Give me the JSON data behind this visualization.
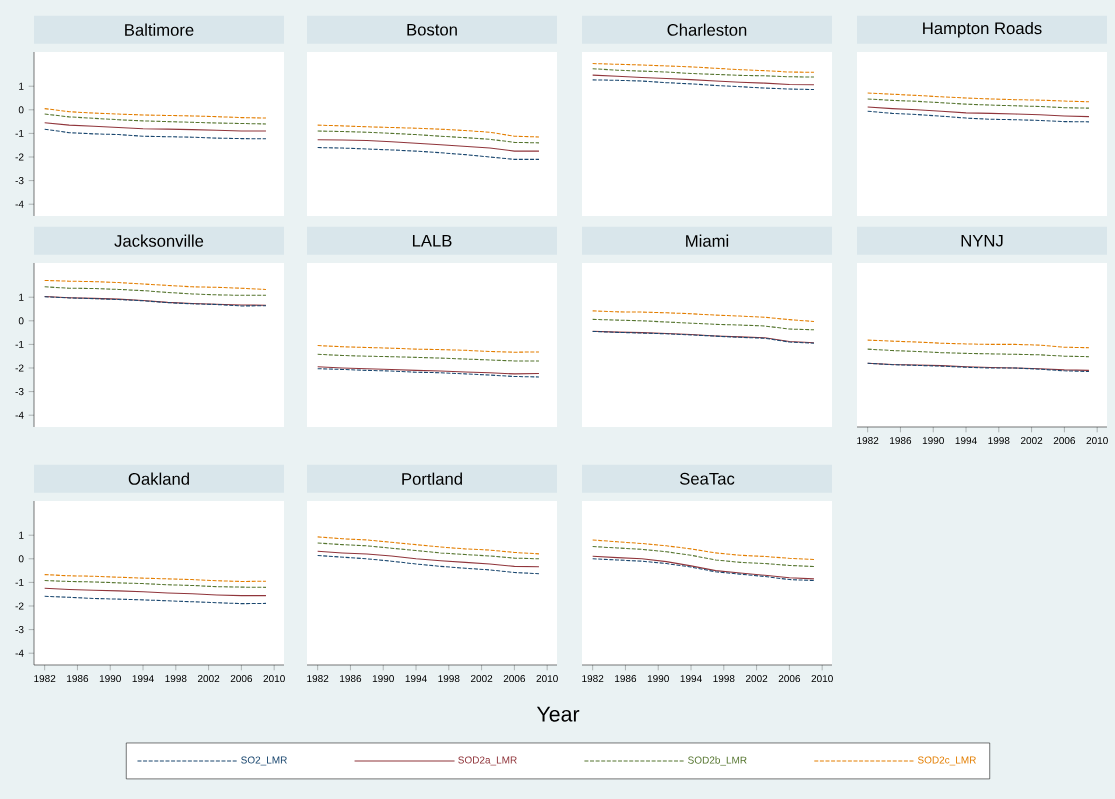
{
  "chart_data": [
    {
      "type": "line",
      "title": "Baltimore",
      "x": [
        1982,
        1985,
        1988,
        1991,
        1994,
        1997,
        2000,
        2003,
        2006,
        2009
      ],
      "xlim": [
        1980.7,
        2011.2
      ],
      "ylim": [
        -4.5,
        2.45
      ],
      "xticks": [
        1982,
        1986,
        1990,
        1994,
        1998,
        2002,
        2006,
        2010
      ],
      "yticks": [
        -4,
        -3,
        -2,
        -1,
        0,
        1
      ],
      "tick_labels": "y",
      "series": [
        {
          "color": "#1a476f",
          "line_style": "dashed",
          "values": [
            -0.82,
            -0.97,
            -1.02,
            -1.05,
            -1.12,
            -1.14,
            -1.16,
            -1.2,
            -1.22,
            -1.23
          ]
        },
        {
          "color": "#90353b",
          "line_style": "solid",
          "values": [
            -0.55,
            -0.65,
            -0.7,
            -0.75,
            -0.8,
            -0.82,
            -0.84,
            -0.87,
            -0.9,
            -0.9
          ]
        },
        {
          "color": "#55752f",
          "line_style": "dashed",
          "values": [
            -0.18,
            -0.3,
            -0.36,
            -0.42,
            -0.47,
            -0.5,
            -0.53,
            -0.56,
            -0.58,
            -0.6
          ]
        },
        {
          "color": "#e37e00",
          "line_style": "dashed",
          "values": [
            0.05,
            -0.08,
            -0.14,
            -0.18,
            -0.22,
            -0.24,
            -0.26,
            -0.29,
            -0.33,
            -0.35
          ]
        }
      ]
    },
    {
      "type": "line",
      "title": "Boston",
      "x": [
        1982,
        1985,
        1988,
        1991,
        1994,
        1997,
        2000,
        2003,
        2006,
        2009
      ],
      "xlim": [
        1980.7,
        2011.2
      ],
      "ylim": [
        -4.5,
        2.45
      ],
      "xticks": [
        1982,
        1986,
        1990,
        1994,
        1998,
        2002,
        2006,
        2010
      ],
      "yticks": [
        -4,
        -3,
        -2,
        -1,
        0,
        1
      ],
      "tick_labels": false,
      "series": [
        {
          "color": "#1a476f",
          "line_style": "dashed",
          "values": [
            -1.6,
            -1.62,
            -1.66,
            -1.7,
            -1.75,
            -1.82,
            -1.9,
            -2.0,
            -2.1,
            -2.1
          ]
        },
        {
          "color": "#90353b",
          "line_style": "solid",
          "values": [
            -1.27,
            -1.28,
            -1.3,
            -1.35,
            -1.42,
            -1.48,
            -1.55,
            -1.62,
            -1.75,
            -1.75
          ]
        },
        {
          "color": "#55752f",
          "line_style": "dashed",
          "values": [
            -0.9,
            -0.92,
            -0.95,
            -1.0,
            -1.05,
            -1.12,
            -1.18,
            -1.25,
            -1.38,
            -1.4
          ]
        },
        {
          "color": "#e37e00",
          "line_style": "dashed",
          "values": [
            -0.65,
            -0.68,
            -0.72,
            -0.75,
            -0.78,
            -0.82,
            -0.88,
            -0.95,
            -1.12,
            -1.15
          ]
        }
      ]
    },
    {
      "type": "line",
      "title": "Charleston",
      "x": [
        1982,
        1985,
        1988,
        1991,
        1994,
        1997,
        2000,
        2003,
        2006,
        2009
      ],
      "xlim": [
        1980.7,
        2011.2
      ],
      "ylim": [
        -4.5,
        2.45
      ],
      "xticks": [
        1982,
        1986,
        1990,
        1994,
        1998,
        2002,
        2006,
        2010
      ],
      "yticks": [
        -4,
        -3,
        -2,
        -1,
        0,
        1
      ],
      "tick_labels": false,
      "series": [
        {
          "color": "#1a476f",
          "line_style": "dashed",
          "values": [
            1.27,
            1.25,
            1.22,
            1.15,
            1.1,
            1.03,
            0.98,
            0.92,
            0.88,
            0.86
          ]
        },
        {
          "color": "#90353b",
          "line_style": "solid",
          "values": [
            1.47,
            1.42,
            1.37,
            1.33,
            1.28,
            1.22,
            1.17,
            1.13,
            1.07,
            1.06
          ]
        },
        {
          "color": "#55752f",
          "line_style": "dashed",
          "values": [
            1.74,
            1.68,
            1.64,
            1.6,
            1.54,
            1.5,
            1.46,
            1.44,
            1.4,
            1.39
          ]
        },
        {
          "color": "#e37e00",
          "line_style": "dashed",
          "values": [
            1.96,
            1.93,
            1.9,
            1.86,
            1.82,
            1.76,
            1.7,
            1.66,
            1.6,
            1.59
          ]
        }
      ]
    },
    {
      "type": "line",
      "title": "Hampton Roads",
      "x": [
        1982,
        1985,
        1988,
        1991,
        1994,
        1997,
        2000,
        2003,
        2006,
        2009
      ],
      "xlim": [
        1980.7,
        2011.2
      ],
      "ylim": [
        -4.5,
        2.45
      ],
      "xticks": [
        1982,
        1986,
        1990,
        1994,
        1998,
        2002,
        2006,
        2010
      ],
      "yticks": [
        -4,
        -3,
        -2,
        -1,
        0,
        1
      ],
      "tick_labels": false,
      "series": [
        {
          "color": "#1a476f",
          "line_style": "dashed",
          "values": [
            -0.06,
            -0.15,
            -0.2,
            -0.27,
            -0.35,
            -0.4,
            -0.42,
            -0.45,
            -0.5,
            -0.51
          ]
        },
        {
          "color": "#90353b",
          "line_style": "solid",
          "values": [
            0.12,
            0.05,
            0.0,
            -0.06,
            -0.13,
            -0.15,
            -0.18,
            -0.21,
            -0.26,
            -0.29
          ]
        },
        {
          "color": "#55752f",
          "line_style": "dashed",
          "values": [
            0.46,
            0.4,
            0.36,
            0.3,
            0.24,
            0.2,
            0.17,
            0.14,
            0.09,
            0.07
          ]
        },
        {
          "color": "#e37e00",
          "line_style": "dashed",
          "values": [
            0.71,
            0.66,
            0.61,
            0.55,
            0.5,
            0.46,
            0.43,
            0.41,
            0.37,
            0.34
          ]
        }
      ]
    },
    {
      "type": "line",
      "title": "Jacksonville",
      "x": [
        1982,
        1985,
        1988,
        1991,
        1994,
        1997,
        2000,
        2003,
        2006,
        2009
      ],
      "xlim": [
        1980.7,
        2011.2
      ],
      "ylim": [
        -4.5,
        2.45
      ],
      "xticks": [
        1982,
        1986,
        1990,
        1994,
        1998,
        2002,
        2006,
        2010
      ],
      "yticks": [
        -4,
        -3,
        -2,
        -1,
        0,
        1
      ],
      "tick_labels": "y",
      "series": [
        {
          "color": "#1a476f",
          "line_style": "dashed",
          "values": [
            1.02,
            0.97,
            0.94,
            0.9,
            0.85,
            0.77,
            0.72,
            0.69,
            0.63,
            0.64
          ]
        },
        {
          "color": "#90353b",
          "line_style": "solid",
          "values": [
            1.03,
            0.98,
            0.95,
            0.92,
            0.86,
            0.78,
            0.73,
            0.7,
            0.67,
            0.66
          ]
        },
        {
          "color": "#55752f",
          "line_style": "dashed",
          "values": [
            1.44,
            1.38,
            1.37,
            1.33,
            1.28,
            1.2,
            1.14,
            1.1,
            1.08,
            1.08
          ]
        },
        {
          "color": "#e37e00",
          "line_style": "dashed",
          "values": [
            1.71,
            1.68,
            1.66,
            1.62,
            1.56,
            1.5,
            1.44,
            1.42,
            1.38,
            1.33
          ]
        }
      ]
    },
    {
      "type": "line",
      "title": "LALB",
      "x": [
        1982,
        1985,
        1988,
        1991,
        1994,
        1997,
        2000,
        2003,
        2006,
        2009
      ],
      "xlim": [
        1980.7,
        2011.2
      ],
      "ylim": [
        -4.5,
        2.45
      ],
      "xticks": [
        1982,
        1986,
        1990,
        1994,
        1998,
        2002,
        2006,
        2010
      ],
      "yticks": [
        -4,
        -3,
        -2,
        -1,
        0,
        1
      ],
      "tick_labels": false,
      "series": [
        {
          "color": "#1a476f",
          "line_style": "dashed",
          "values": [
            -2.03,
            -2.06,
            -2.1,
            -2.13,
            -2.18,
            -2.2,
            -2.25,
            -2.3,
            -2.36,
            -2.38
          ]
        },
        {
          "color": "#90353b",
          "line_style": "solid",
          "values": [
            -1.95,
            -2.0,
            -2.03,
            -2.06,
            -2.1,
            -2.13,
            -2.17,
            -2.2,
            -2.25,
            -2.23
          ]
        },
        {
          "color": "#55752f",
          "line_style": "dashed",
          "values": [
            -1.42,
            -1.47,
            -1.5,
            -1.52,
            -1.55,
            -1.58,
            -1.62,
            -1.66,
            -1.7,
            -1.7
          ]
        },
        {
          "color": "#e37e00",
          "line_style": "dashed",
          "values": [
            -1.05,
            -1.1,
            -1.13,
            -1.16,
            -1.2,
            -1.22,
            -1.25,
            -1.3,
            -1.33,
            -1.32
          ]
        }
      ]
    },
    {
      "type": "line",
      "title": "Miami",
      "x": [
        1982,
        1985,
        1988,
        1991,
        1994,
        1997,
        2000,
        2003,
        2006,
        2009
      ],
      "xlim": [
        1980.7,
        2011.2
      ],
      "ylim": [
        -4.5,
        2.45
      ],
      "xticks": [
        1982,
        1986,
        1990,
        1994,
        1998,
        2002,
        2006,
        2010
      ],
      "yticks": [
        -4,
        -3,
        -2,
        -1,
        0,
        1
      ],
      "tick_labels": false,
      "series": [
        {
          "color": "#1a476f",
          "line_style": "dashed",
          "values": [
            -0.45,
            -0.49,
            -0.52,
            -0.55,
            -0.6,
            -0.65,
            -0.7,
            -0.74,
            -0.9,
            -0.95
          ]
        },
        {
          "color": "#90353b",
          "line_style": "solid",
          "values": [
            -0.44,
            -0.48,
            -0.5,
            -0.54,
            -0.58,
            -0.64,
            -0.68,
            -0.72,
            -0.88,
            -0.93
          ]
        },
        {
          "color": "#55752f",
          "line_style": "dashed",
          "values": [
            0.06,
            0.03,
            0.0,
            -0.05,
            -0.1,
            -0.15,
            -0.18,
            -0.22,
            -0.35,
            -0.38
          ]
        },
        {
          "color": "#e37e00",
          "line_style": "dashed",
          "values": [
            0.42,
            0.38,
            0.37,
            0.34,
            0.3,
            0.24,
            0.2,
            0.15,
            0.05,
            -0.03
          ]
        }
      ]
    },
    {
      "type": "line",
      "title": "NYNJ",
      "x": [
        1982,
        1985,
        1988,
        1991,
        1994,
        1997,
        2000,
        2003,
        2006,
        2009
      ],
      "xlim": [
        1980.7,
        2011.2
      ],
      "ylim": [
        -4.5,
        2.45
      ],
      "xticks": [
        1982,
        1986,
        1990,
        1994,
        1998,
        2002,
        2006,
        2010
      ],
      "yticks": [
        -4,
        -3,
        -2,
        -1,
        0,
        1
      ],
      "tick_labels": "x",
      "series": [
        {
          "color": "#1a476f",
          "line_style": "dashed",
          "values": [
            -1.8,
            -1.86,
            -1.89,
            -1.92,
            -1.97,
            -2.0,
            -2.0,
            -2.05,
            -2.12,
            -2.15
          ]
        },
        {
          "color": "#90353b",
          "line_style": "solid",
          "values": [
            -1.8,
            -1.85,
            -1.87,
            -1.9,
            -1.95,
            -1.98,
            -2.0,
            -2.03,
            -2.08,
            -2.1
          ]
        },
        {
          "color": "#55752f",
          "line_style": "dashed",
          "values": [
            -1.2,
            -1.26,
            -1.3,
            -1.35,
            -1.38,
            -1.4,
            -1.42,
            -1.44,
            -1.5,
            -1.52
          ]
        },
        {
          "color": "#e37e00",
          "line_style": "dashed",
          "values": [
            -0.82,
            -0.86,
            -0.9,
            -0.95,
            -0.98,
            -1.0,
            -1.0,
            -1.03,
            -1.12,
            -1.14
          ]
        }
      ]
    },
    {
      "type": "line",
      "title": "Oakland",
      "x": [
        1982,
        1985,
        1988,
        1991,
        1994,
        1997,
        2000,
        2003,
        2006,
        2009
      ],
      "xlim": [
        1980.7,
        2011.2
      ],
      "ylim": [
        -4.5,
        2.45
      ],
      "xticks": [
        1982,
        1986,
        1990,
        1994,
        1998,
        2002,
        2006,
        2010
      ],
      "yticks": [
        -4,
        -3,
        -2,
        -1,
        0,
        1
      ],
      "series": [
        {
          "color": "#1a476f",
          "line_style": "dashed",
          "values": [
            -1.59,
            -1.63,
            -1.68,
            -1.71,
            -1.74,
            -1.78,
            -1.82,
            -1.86,
            -1.9,
            -1.89
          ]
        },
        {
          "color": "#90353b",
          "line_style": "solid",
          "values": [
            -1.25,
            -1.3,
            -1.33,
            -1.36,
            -1.4,
            -1.45,
            -1.48,
            -1.53,
            -1.56,
            -1.56
          ]
        },
        {
          "color": "#55752f",
          "line_style": "dashed",
          "values": [
            -0.92,
            -0.96,
            -0.98,
            -1.02,
            -1.05,
            -1.1,
            -1.13,
            -1.18,
            -1.2,
            -1.21
          ]
        },
        {
          "color": "#e37e00",
          "line_style": "dashed",
          "values": [
            -0.67,
            -0.72,
            -0.74,
            -0.78,
            -0.82,
            -0.85,
            -0.88,
            -0.93,
            -0.96,
            -0.95
          ]
        }
      ]
    },
    {
      "type": "line",
      "title": "Portland",
      "xlabel": "Year",
      "legend": "bottom",
      "x": [
        1982,
        1985,
        1988,
        1991,
        1994,
        1997,
        2000,
        2003,
        2006,
        2009
      ],
      "xlim": [
        1980.7,
        2011.2
      ],
      "ylim": [
        -4.5,
        2.45
      ],
      "xticks": [
        1982,
        1986,
        1990,
        1994,
        1998,
        2002,
        2006,
        2010
      ],
      "yticks": [
        -4,
        -3,
        -2,
        -1,
        0,
        1
      ],
      "tick_labels": "x",
      "series": [
        {
          "name": "SO2_LMR",
          "color": "#1a476f",
          "line_style": "dashed",
          "values": [
            0.14,
            0.07,
            0.0,
            -0.1,
            -0.22,
            -0.32,
            -0.4,
            -0.47,
            -0.58,
            -0.63
          ]
        },
        {
          "name": "SOD2a_LMR",
          "color": "#90353b",
          "line_style": "solid",
          "values": [
            0.32,
            0.25,
            0.2,
            0.12,
            0.0,
            -0.08,
            -0.15,
            -0.22,
            -0.32,
            -0.34
          ]
        },
        {
          "name": "SOD2b_LMR",
          "color": "#55752f",
          "line_style": "dashed",
          "values": [
            0.67,
            0.6,
            0.55,
            0.45,
            0.35,
            0.25,
            0.18,
            0.12,
            0.03,
            0.0
          ]
        },
        {
          "name": "SOD2c_LMR",
          "color": "#e37e00",
          "line_style": "dashed",
          "values": [
            0.93,
            0.85,
            0.8,
            0.7,
            0.6,
            0.5,
            0.42,
            0.37,
            0.27,
            0.21
          ]
        }
      ]
    },
    {
      "type": "line",
      "title": "SeaTac",
      "x": [
        1982,
        1985,
        1988,
        1991,
        1994,
        1997,
        2000,
        2003,
        2006,
        2009
      ],
      "xlim": [
        1980.7,
        2011.2
      ],
      "ylim": [
        -4.5,
        2.45
      ],
      "xticks": [
        1982,
        1986,
        1990,
        1994,
        1998,
        2002,
        2006,
        2010
      ],
      "yticks": [
        -4,
        -3,
        -2,
        -1,
        0,
        1
      ],
      "tick_labels": "x",
      "series": [
        {
          "color": "#1a476f",
          "line_style": "dashed",
          "values": [
            0.0,
            -0.05,
            -0.1,
            -0.2,
            -0.35,
            -0.55,
            -0.65,
            -0.75,
            -0.88,
            -0.92
          ]
        },
        {
          "color": "#90353b",
          "line_style": "solid",
          "values": [
            0.11,
            0.05,
            0.0,
            -0.12,
            -0.3,
            -0.5,
            -0.6,
            -0.7,
            -0.8,
            -0.85
          ]
        },
        {
          "color": "#55752f",
          "line_style": "dashed",
          "values": [
            0.52,
            0.46,
            0.4,
            0.3,
            0.15,
            -0.05,
            -0.15,
            -0.2,
            -0.28,
            -0.33
          ]
        },
        {
          "color": "#e37e00",
          "line_style": "dashed",
          "values": [
            0.8,
            0.72,
            0.65,
            0.55,
            0.42,
            0.25,
            0.15,
            0.1,
            0.02,
            -0.03
          ]
        }
      ]
    }
  ]
}
